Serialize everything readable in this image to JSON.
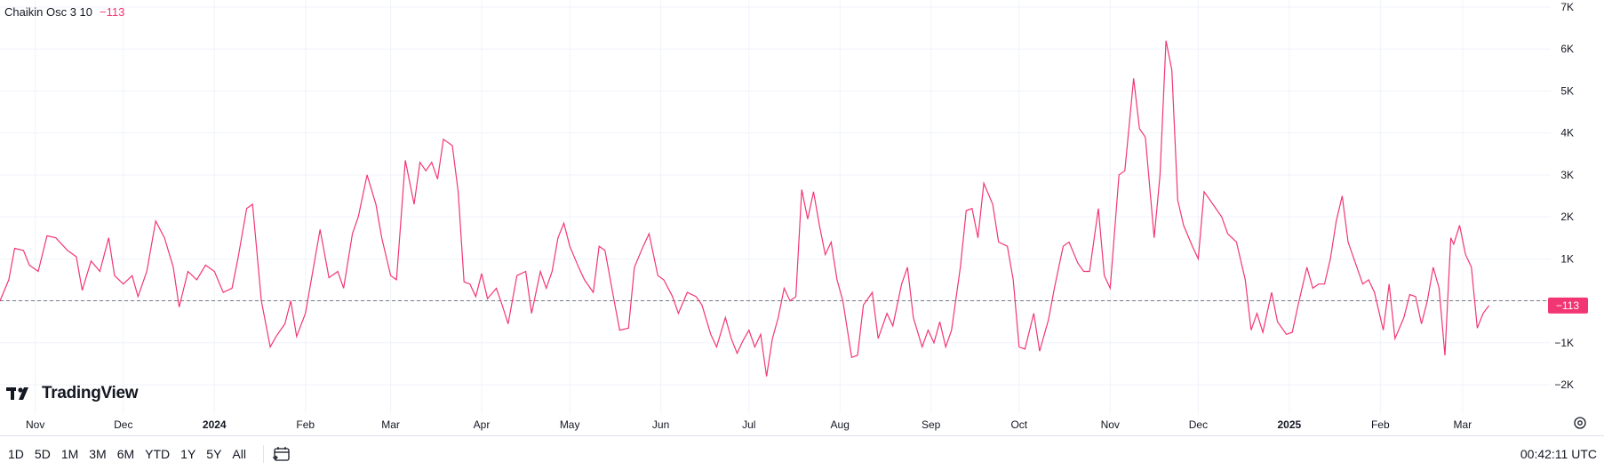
{
  "legend": {
    "name": "Chaikin Osc 3 10",
    "value": "−113"
  },
  "logo": {
    "text": "TradingView"
  },
  "range_buttons": [
    "1D",
    "5D",
    "1M",
    "3M",
    "6M",
    "YTD",
    "1Y",
    "5Y",
    "All"
  ],
  "clock": "00:42:11 UTC",
  "colors": {
    "line": "#f23673",
    "grid": "#f0f3fa",
    "text": "#131722",
    "zero": "#787b86"
  },
  "icons": {
    "calendar": "calendar-range-icon",
    "settings": "gear-icon",
    "logo": "tradingview-logo-icon"
  },
  "chart_data": {
    "type": "line",
    "title": "",
    "xlabel": "",
    "ylabel": "",
    "ylim": [
      -2500,
      7200
    ],
    "y_ticks": [
      -2000,
      -1000,
      0,
      1000,
      2000,
      3000,
      4000,
      5000,
      6000,
      7000
    ],
    "y_tick_labels": [
      "−2K",
      "−1K",
      "0",
      "1K",
      "2K",
      "3K",
      "4K",
      "5K",
      "6K",
      "7K"
    ],
    "x_labels": [
      {
        "date": "2023-11-01",
        "text": "Nov",
        "bold": false
      },
      {
        "date": "2023-12-01",
        "text": "Dec",
        "bold": false
      },
      {
        "date": "2024-01-01",
        "text": "2024",
        "bold": true
      },
      {
        "date": "2024-02-01",
        "text": "Feb",
        "bold": false
      },
      {
        "date": "2024-03-01",
        "text": "Mar",
        "bold": false
      },
      {
        "date": "2024-04-01",
        "text": "Apr",
        "bold": false
      },
      {
        "date": "2024-05-01",
        "text": "May",
        "bold": false
      },
      {
        "date": "2024-06-01",
        "text": "Jun",
        "bold": false
      },
      {
        "date": "2024-07-01",
        "text": "Jul",
        "bold": false
      },
      {
        "date": "2024-08-01",
        "text": "Aug",
        "bold": false
      },
      {
        "date": "2024-09-01",
        "text": "Sep",
        "bold": false
      },
      {
        "date": "2024-10-01",
        "text": "Oct",
        "bold": false
      },
      {
        "date": "2024-11-01",
        "text": "Nov",
        "bold": false
      },
      {
        "date": "2024-12-01",
        "text": "Dec",
        "bold": false
      },
      {
        "date": "2025-01-01",
        "text": "2025",
        "bold": true
      },
      {
        "date": "2025-02-01",
        "text": "Feb",
        "bold": false
      },
      {
        "date": "2025-03-01",
        "text": "Mar",
        "bold": false
      }
    ],
    "xlim": [
      "2023-10-20",
      "2025-03-31"
    ],
    "last_value": -113,
    "last_value_label": "−113",
    "zero_line": true,
    "grid": true,
    "series": [
      {
        "points": [
          [
            "2023-10-20",
            0
          ],
          [
            "2023-10-23",
            500
          ],
          [
            "2023-10-25",
            1250
          ],
          [
            "2023-10-28",
            1200
          ],
          [
            "2023-10-30",
            850
          ],
          [
            "2023-11-02",
            700
          ],
          [
            "2023-11-05",
            1550
          ],
          [
            "2023-11-08",
            1500
          ],
          [
            "2023-11-12",
            1200
          ],
          [
            "2023-11-15",
            1050
          ],
          [
            "2023-11-17",
            250
          ],
          [
            "2023-11-20",
            950
          ],
          [
            "2023-11-23",
            700
          ],
          [
            "2023-11-26",
            1500
          ],
          [
            "2023-11-28",
            600
          ],
          [
            "2023-12-01",
            400
          ],
          [
            "2023-12-04",
            600
          ],
          [
            "2023-12-06",
            100
          ],
          [
            "2023-12-09",
            700
          ],
          [
            "2023-12-12",
            1900
          ],
          [
            "2023-12-15",
            1500
          ],
          [
            "2023-12-18",
            800
          ],
          [
            "2023-12-20",
            -150
          ],
          [
            "2023-12-23",
            700
          ],
          [
            "2023-12-26",
            500
          ],
          [
            "2023-12-29",
            850
          ],
          [
            "2024-01-01",
            700
          ],
          [
            "2024-01-04",
            200
          ],
          [
            "2024-01-07",
            300
          ],
          [
            "2024-01-09",
            1000
          ],
          [
            "2024-01-12",
            2200
          ],
          [
            "2024-01-14",
            2300
          ],
          [
            "2024-01-17",
            0
          ],
          [
            "2024-01-20",
            -1100
          ],
          [
            "2024-01-22",
            -850
          ],
          [
            "2024-01-25",
            -550
          ],
          [
            "2024-01-27",
            0
          ],
          [
            "2024-01-29",
            -850
          ],
          [
            "2024-02-01",
            -300
          ],
          [
            "2024-02-04",
            900
          ],
          [
            "2024-02-06",
            1700
          ],
          [
            "2024-02-09",
            550
          ],
          [
            "2024-02-12",
            700
          ],
          [
            "2024-02-14",
            300
          ],
          [
            "2024-02-17",
            1600
          ],
          [
            "2024-02-19",
            2000
          ],
          [
            "2024-02-22",
            3000
          ],
          [
            "2024-02-25",
            2300
          ],
          [
            "2024-02-27",
            1500
          ],
          [
            "2024-03-01",
            600
          ],
          [
            "2024-03-03",
            500
          ],
          [
            "2024-03-06",
            3350
          ],
          [
            "2024-03-09",
            2300
          ],
          [
            "2024-03-11",
            3300
          ],
          [
            "2024-03-13",
            3100
          ],
          [
            "2024-03-15",
            3300
          ],
          [
            "2024-03-17",
            2900
          ],
          [
            "2024-03-19",
            3850
          ],
          [
            "2024-03-22",
            3700
          ],
          [
            "2024-03-24",
            2600
          ],
          [
            "2024-03-26",
            450
          ],
          [
            "2024-03-28",
            400
          ],
          [
            "2024-03-30",
            100
          ],
          [
            "2024-04-01",
            650
          ],
          [
            "2024-04-03",
            50
          ],
          [
            "2024-04-06",
            300
          ],
          [
            "2024-04-08",
            -100
          ],
          [
            "2024-04-10",
            -550
          ],
          [
            "2024-04-13",
            600
          ],
          [
            "2024-04-16",
            700
          ],
          [
            "2024-04-18",
            -300
          ],
          [
            "2024-04-21",
            700
          ],
          [
            "2024-04-23",
            300
          ],
          [
            "2024-04-25",
            700
          ],
          [
            "2024-04-27",
            1500
          ],
          [
            "2024-04-29",
            1850
          ],
          [
            "2024-05-01",
            1300
          ],
          [
            "2024-05-04",
            800
          ],
          [
            "2024-05-06",
            500
          ],
          [
            "2024-05-09",
            200
          ],
          [
            "2024-05-11",
            1300
          ],
          [
            "2024-05-13",
            1200
          ],
          [
            "2024-05-16",
            50
          ],
          [
            "2024-05-18",
            -700
          ],
          [
            "2024-05-21",
            -650
          ],
          [
            "2024-05-23",
            800
          ],
          [
            "2024-05-26",
            1300
          ],
          [
            "2024-05-28",
            1600
          ],
          [
            "2024-05-31",
            600
          ],
          [
            "2024-06-02",
            500
          ],
          [
            "2024-06-05",
            100
          ],
          [
            "2024-06-07",
            -300
          ],
          [
            "2024-06-10",
            200
          ],
          [
            "2024-06-13",
            100
          ],
          [
            "2024-06-15",
            -100
          ],
          [
            "2024-06-18",
            -800
          ],
          [
            "2024-06-20",
            -1100
          ],
          [
            "2024-06-23",
            -400
          ],
          [
            "2024-06-25",
            -900
          ],
          [
            "2024-06-27",
            -1250
          ],
          [
            "2024-06-29",
            -950
          ],
          [
            "2024-07-01",
            -700
          ],
          [
            "2024-07-03",
            -1100
          ],
          [
            "2024-07-05",
            -800
          ],
          [
            "2024-07-07",
            -1800
          ],
          [
            "2024-07-09",
            -900
          ],
          [
            "2024-07-11",
            -400
          ],
          [
            "2024-07-13",
            300
          ],
          [
            "2024-07-15",
            0
          ],
          [
            "2024-07-17",
            100
          ],
          [
            "2024-07-19",
            2650
          ],
          [
            "2024-07-21",
            1950
          ],
          [
            "2024-07-23",
            2600
          ],
          [
            "2024-07-25",
            1800
          ],
          [
            "2024-07-27",
            1100
          ],
          [
            "2024-07-29",
            1400
          ],
          [
            "2024-07-31",
            500
          ],
          [
            "2024-08-02",
            0
          ],
          [
            "2024-08-05",
            -1350
          ],
          [
            "2024-08-07",
            -1300
          ],
          [
            "2024-08-09",
            -100
          ],
          [
            "2024-08-12",
            200
          ],
          [
            "2024-08-14",
            -900
          ],
          [
            "2024-08-17",
            -300
          ],
          [
            "2024-08-19",
            -600
          ],
          [
            "2024-08-22",
            400
          ],
          [
            "2024-08-24",
            800
          ],
          [
            "2024-08-26",
            -400
          ],
          [
            "2024-08-29",
            -1100
          ],
          [
            "2024-08-31",
            -700
          ],
          [
            "2024-09-02",
            -1000
          ],
          [
            "2024-09-04",
            -500
          ],
          [
            "2024-09-06",
            -1100
          ],
          [
            "2024-09-08",
            -700
          ],
          [
            "2024-09-11",
            800
          ],
          [
            "2024-09-13",
            2150
          ],
          [
            "2024-09-15",
            2200
          ],
          [
            "2024-09-17",
            1500
          ],
          [
            "2024-09-19",
            2800
          ],
          [
            "2024-09-22",
            2300
          ],
          [
            "2024-09-24",
            1400
          ],
          [
            "2024-09-27",
            1300
          ],
          [
            "2024-09-29",
            500
          ],
          [
            "2024-10-01",
            -1100
          ],
          [
            "2024-10-03",
            -1150
          ],
          [
            "2024-10-06",
            -300
          ],
          [
            "2024-10-08",
            -1200
          ],
          [
            "2024-10-11",
            -450
          ],
          [
            "2024-10-13",
            300
          ],
          [
            "2024-10-16",
            1300
          ],
          [
            "2024-10-18",
            1400
          ],
          [
            "2024-10-21",
            900
          ],
          [
            "2024-10-23",
            700
          ],
          [
            "2024-10-25",
            700
          ],
          [
            "2024-10-28",
            2200
          ],
          [
            "2024-10-30",
            600
          ],
          [
            "2024-11-01",
            300
          ],
          [
            "2024-11-04",
            3000
          ],
          [
            "2024-11-06",
            3100
          ],
          [
            "2024-11-09",
            5300
          ],
          [
            "2024-11-11",
            4100
          ],
          [
            "2024-11-13",
            3900
          ],
          [
            "2024-11-16",
            1500
          ],
          [
            "2024-11-18",
            3000
          ],
          [
            "2024-11-20",
            6200
          ],
          [
            "2024-11-22",
            5500
          ],
          [
            "2024-11-24",
            2400
          ],
          [
            "2024-11-26",
            1800
          ],
          [
            "2024-11-29",
            1300
          ],
          [
            "2024-12-01",
            1000
          ],
          [
            "2024-12-03",
            2600
          ],
          [
            "2024-12-06",
            2300
          ],
          [
            "2024-12-09",
            2000
          ],
          [
            "2024-12-11",
            1600
          ],
          [
            "2024-12-14",
            1400
          ],
          [
            "2024-12-17",
            500
          ],
          [
            "2024-12-19",
            -700
          ],
          [
            "2024-12-21",
            -300
          ],
          [
            "2024-12-23",
            -750
          ],
          [
            "2024-12-26",
            200
          ],
          [
            "2024-12-28",
            -500
          ],
          [
            "2024-12-31",
            -800
          ],
          [
            "2025-01-02",
            -750
          ],
          [
            "2025-01-04",
            -100
          ],
          [
            "2025-01-07",
            800
          ],
          [
            "2025-01-09",
            300
          ],
          [
            "2025-01-11",
            400
          ],
          [
            "2025-01-13",
            400
          ],
          [
            "2025-01-15",
            1000
          ],
          [
            "2025-01-17",
            1900
          ],
          [
            "2025-01-19",
            2500
          ],
          [
            "2025-01-21",
            1400
          ],
          [
            "2025-01-24",
            800
          ],
          [
            "2025-01-26",
            400
          ],
          [
            "2025-01-28",
            500
          ],
          [
            "2025-01-30",
            200
          ],
          [
            "2025-02-02",
            -700
          ],
          [
            "2025-02-04",
            400
          ],
          [
            "2025-02-06",
            -900
          ],
          [
            "2025-02-09",
            -400
          ],
          [
            "2025-02-11",
            150
          ],
          [
            "2025-02-13",
            100
          ],
          [
            "2025-02-15",
            -550
          ],
          [
            "2025-02-17",
            0
          ],
          [
            "2025-02-19",
            800
          ],
          [
            "2025-02-21",
            300
          ],
          [
            "2025-02-23",
            -1300
          ],
          [
            "2025-02-25",
            1500
          ],
          [
            "2025-02-26",
            1350
          ],
          [
            "2025-02-28",
            1800
          ],
          [
            "2025-03-02",
            1100
          ],
          [
            "2025-03-04",
            800
          ],
          [
            "2025-03-06",
            -650
          ],
          [
            "2025-03-08",
            -300
          ],
          [
            "2025-03-10",
            -113
          ]
        ]
      }
    ]
  }
}
